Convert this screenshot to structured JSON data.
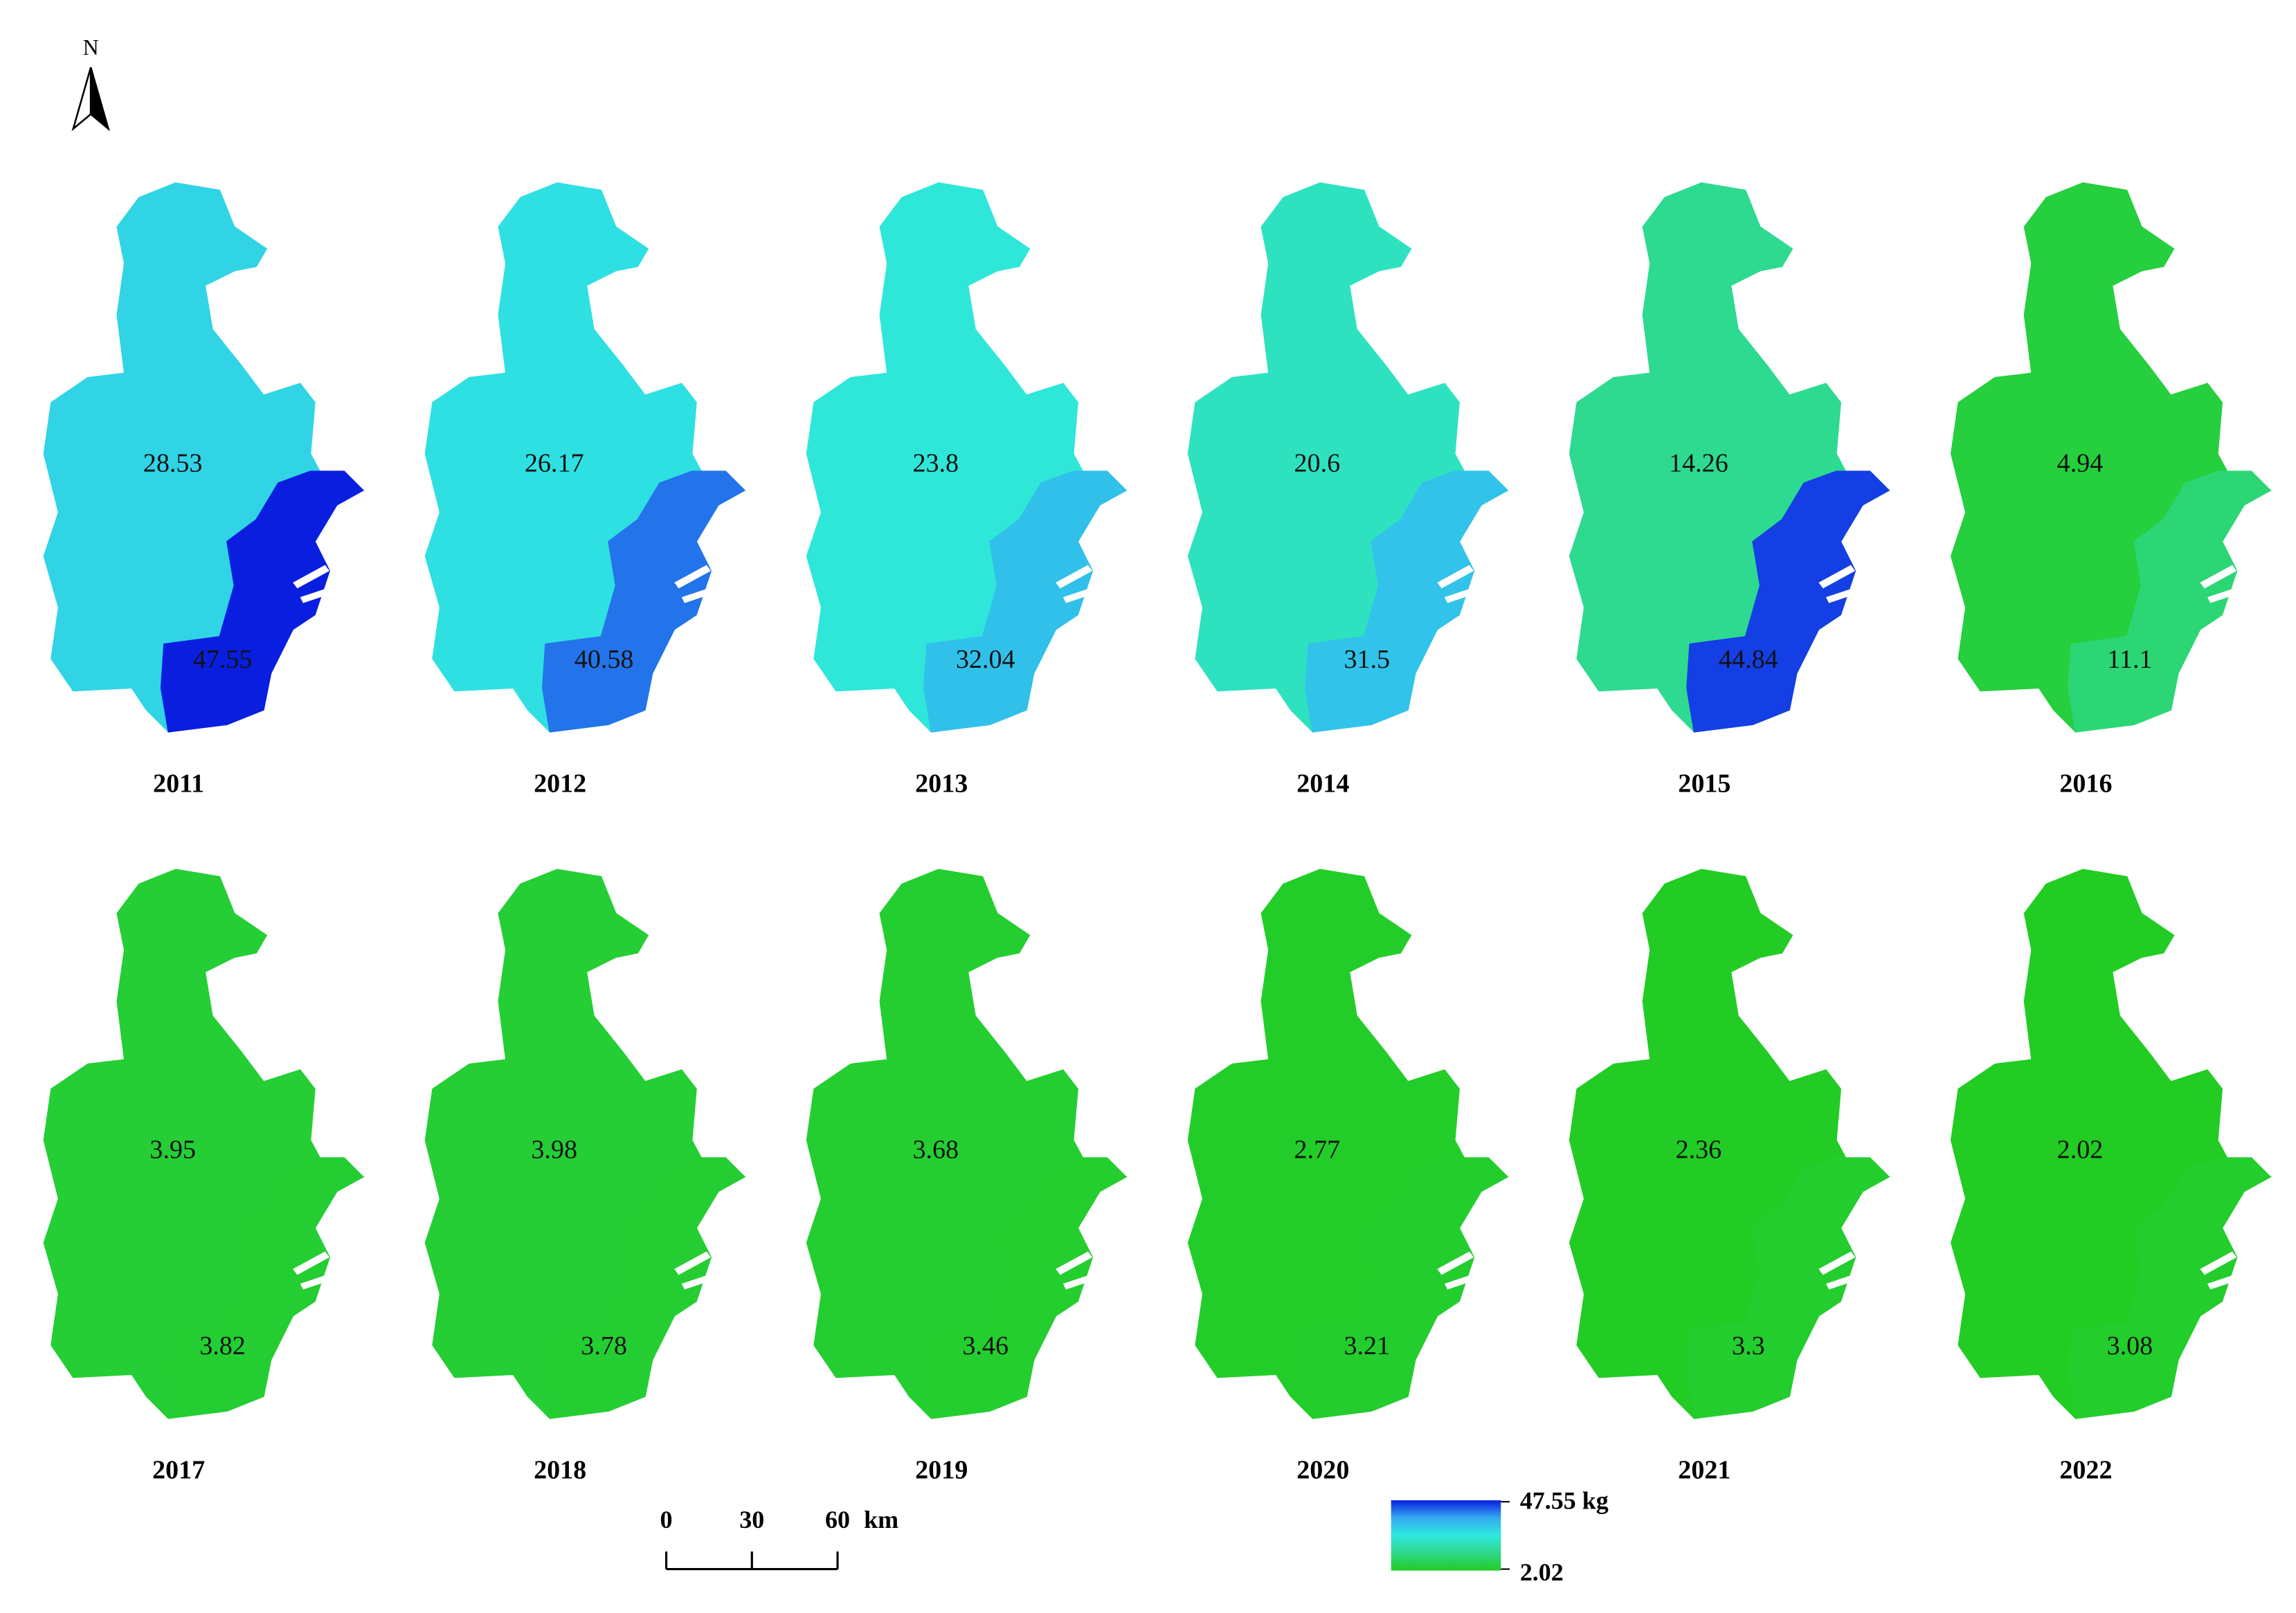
{
  "north_label": "N",
  "maps": [
    {
      "year": "2011",
      "values": [
        28.53,
        47.55
      ]
    },
    {
      "year": "2012",
      "values": [
        26.17,
        40.58
      ]
    },
    {
      "year": "2013",
      "values": [
        23.8,
        32.04
      ]
    },
    {
      "year": "2014",
      "values": [
        20.6,
        31.5
      ]
    },
    {
      "year": "2015",
      "values": [
        14.26,
        44.84
      ]
    },
    {
      "year": "2016",
      "values": [
        4.94,
        11.1
      ]
    },
    {
      "year": "2017",
      "values": [
        3.95,
        3.82
      ]
    },
    {
      "year": "2018",
      "values": [
        3.98,
        3.78
      ]
    },
    {
      "year": "2019",
      "values": [
        3.68,
        3.46
      ]
    },
    {
      "year": "2020",
      "values": [
        2.77,
        3.21
      ]
    },
    {
      "year": "2021",
      "values": [
        2.36,
        3.3
      ]
    },
    {
      "year": "2022",
      "values": [
        2.02,
        3.08
      ]
    }
  ],
  "legend": {
    "max": {
      "value": 47.55,
      "label": "47.55 kg"
    },
    "min": 2.02,
    "colors": [
      "#22cc22",
      "#2ed88a",
      "#2ee8e0",
      "#33aaf0",
      "#0a1ee0"
    ]
  },
  "scale_bar": {
    "ticks": [
      0,
      30,
      60
    ],
    "unit": "km"
  }
}
